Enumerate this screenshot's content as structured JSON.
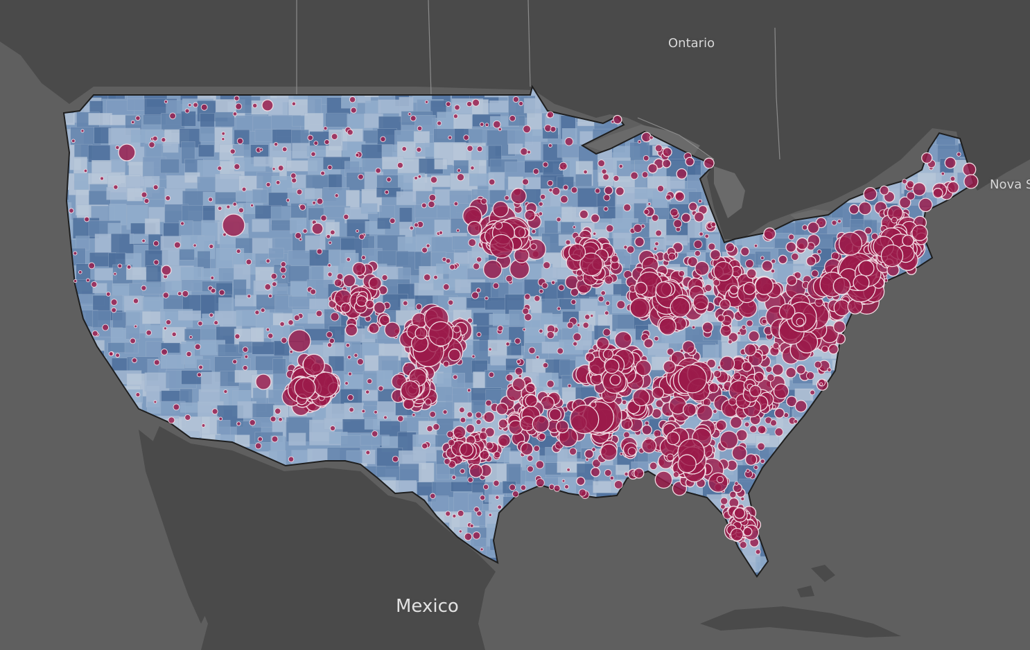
{
  "map": {
    "region": "contiguous-united-states",
    "basemap": "dark-gray",
    "marks": "proportional-symbols-over-county-choropleth",
    "labels": {
      "ontario": "Ontario",
      "nova_scotia": "Nova S",
      "mexico": "Mexico"
    }
  },
  "colors": {
    "background": "#5f5f5f",
    "land_dark": "#4a4a4a",
    "water_lake": "#6a6a6a",
    "border_line": "#8c8c8c",
    "choropleth_light": "#b9c8da",
    "choropleth_mid": "#7e9cc0",
    "choropleth_dark": "#4d6f9c",
    "bubble_fill": "#9b1b4b",
    "bubble_stroke": "#f2dde4"
  }
}
